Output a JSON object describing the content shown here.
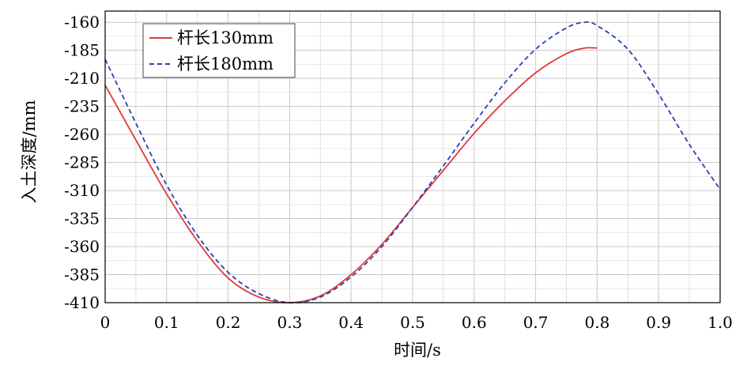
{
  "chart_data": {
    "type": "line",
    "title": "",
    "xlabel": "时间/s",
    "ylabel": "入土深度/mm",
    "xlim": [
      0,
      1.0
    ],
    "ylim": [
      -410,
      -150
    ],
    "x_ticks": [
      "0",
      "0.1",
      "0.2",
      "0.3",
      "0.4",
      "0.5",
      "0.6",
      "0.7",
      "0.8",
      "0.9",
      "1.0"
    ],
    "y_ticks": [
      "-160",
      "-185",
      "-210",
      "-235",
      "-260",
      "-285",
      "-310",
      "-335",
      "-360",
      "-385",
      "-410"
    ],
    "grid": true,
    "legend_position": "top-left",
    "series": [
      {
        "name": "杆长130mm",
        "color": "#e03a3a",
        "style": "solid",
        "x": [
          0,
          0.05,
          0.1,
          0.15,
          0.2,
          0.25,
          0.3,
          0.35,
          0.4,
          0.45,
          0.5,
          0.55,
          0.6,
          0.65,
          0.7,
          0.75,
          0.78,
          0.8
        ],
        "y": [
          -216,
          -265,
          -313,
          -355,
          -388,
          -405,
          -410,
          -404,
          -385,
          -358,
          -325,
          -292,
          -259,
          -230,
          -205,
          -188,
          -183,
          -183
        ]
      },
      {
        "name": "杆长180mm",
        "color": "#2b3fb0",
        "style": "dashed",
        "x": [
          0,
          0.05,
          0.1,
          0.15,
          0.2,
          0.25,
          0.3,
          0.35,
          0.4,
          0.45,
          0.5,
          0.55,
          0.6,
          0.65,
          0.7,
          0.75,
          0.78,
          0.8,
          0.85,
          0.9,
          0.95,
          1.0
        ],
        "y": [
          -193,
          -250,
          -305,
          -350,
          -383,
          -402,
          -410,
          -405,
          -387,
          -360,
          -325,
          -288,
          -250,
          -214,
          -184,
          -165,
          -160,
          -163,
          -184,
          -224,
          -269,
          -309
        ]
      }
    ]
  }
}
